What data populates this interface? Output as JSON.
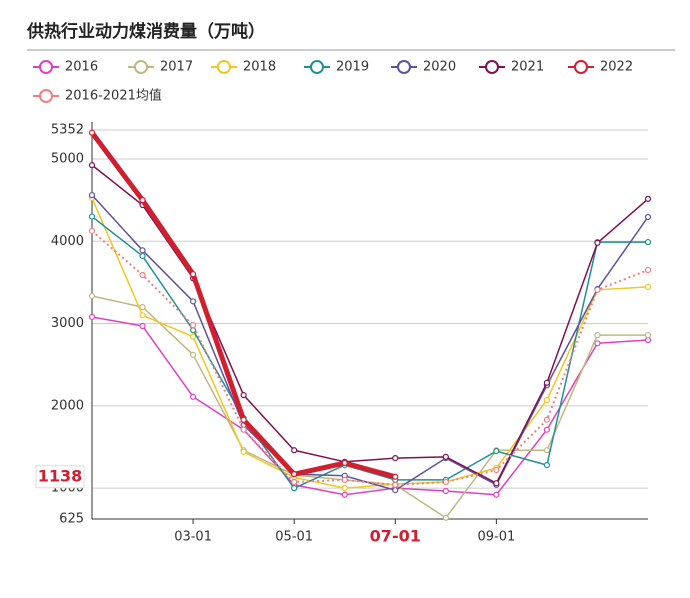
{
  "chart_data": {
    "type": "line",
    "title": "供热行业动力煤消费量（万吨）",
    "categories": [
      null,
      null,
      "03-01",
      null,
      "05-01",
      null,
      "07-01",
      null,
      "09-01",
      null,
      null,
      null
    ],
    "ylim": [
      625,
      5352
    ],
    "yticks": [
      625,
      1000,
      2000,
      3000,
      4000,
      5000,
      5352
    ],
    "grid": true,
    "annotation": {
      "value": 1138,
      "color": "#d02030"
    },
    "series": [
      {
        "name": "2016",
        "color": "#e040c0",
        "width": 1.5,
        "values": [
          3080,
          2970,
          2110,
          1710,
          1040,
          920,
          1000,
          965,
          920,
          1710,
          2760,
          2800
        ]
      },
      {
        "name": "2017",
        "color": "#c0b880",
        "width": 1.5,
        "values": [
          3335,
          3200,
          2620,
          1460,
          1160,
          1100,
          1040,
          640,
          1460,
          1460,
          2860,
          2860
        ]
      },
      {
        "name": "2018",
        "color": "#f0c820",
        "width": 1.5,
        "values": [
          4525,
          3100,
          2840,
          1440,
          1130,
          1000,
          1050,
          1075,
          1245,
          2070,
          3410,
          3445
        ]
      },
      {
        "name": "2019",
        "color": "#209090",
        "width": 1.5,
        "values": [
          4300,
          3820,
          2920,
          1850,
          1000,
          1280,
          1100,
          1100,
          1450,
          1280,
          3990,
          3990
        ]
      },
      {
        "name": "2020",
        "color": "#6050a0",
        "width": 1.5,
        "values": [
          4560,
          3890,
          3270,
          1765,
          1170,
          1150,
          975,
          1365,
          1040,
          2250,
          3420,
          4295
        ]
      },
      {
        "name": "2021",
        "color": "#801050",
        "width": 1.5,
        "values": [
          4925,
          4440,
          3550,
          2130,
          1460,
          1320,
          1365,
          1380,
          1060,
          2280,
          3980,
          4515
        ]
      },
      {
        "name": "2022",
        "color": "#d02030",
        "width": 5,
        "values": [
          5320,
          4500,
          3600,
          1830,
          1170,
          1305,
          1138,
          null,
          null,
          null,
          null,
          null
        ]
      },
      {
        "name": "2016-2021均值",
        "color": "#f08080",
        "width": 2,
        "dash": "dotted",
        "values": [
          4125,
          3590,
          2980,
          1710,
          1075,
          1100,
          1040,
          1075,
          1220,
          1830,
          3410,
          3650
        ]
      }
    ]
  }
}
